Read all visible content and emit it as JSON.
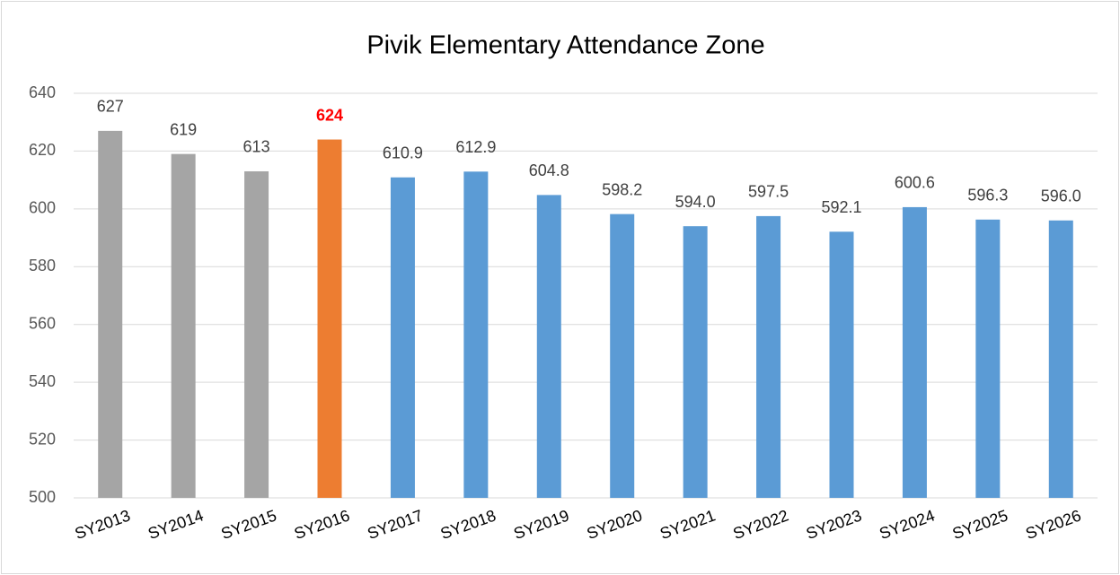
{
  "chart_data": {
    "type": "bar",
    "title": "Pivik Elementary Attendance Zone",
    "categories": [
      "SY2013",
      "SY2014",
      "SY2015",
      "SY2016",
      "SY2017",
      "SY2018",
      "SY2019",
      "SY2020",
      "SY2021",
      "SY2022",
      "SY2023",
      "SY2024",
      "SY2025",
      "SY2026"
    ],
    "values": [
      627,
      619,
      613,
      624,
      610.9,
      612.9,
      604.8,
      598.2,
      594.0,
      597.5,
      592.1,
      600.6,
      596.3,
      596.0
    ],
    "value_labels": [
      "627",
      "619",
      "613",
      "624",
      "610.9",
      "612.9",
      "604.8",
      "598.2",
      "594.0",
      "597.5",
      "592.1",
      "600.6",
      "596.3",
      "596.0"
    ],
    "colors": [
      "#a5a5a5",
      "#a5a5a5",
      "#a5a5a5",
      "#ed7d31",
      "#5b9bd5",
      "#5b9bd5",
      "#5b9bd5",
      "#5b9bd5",
      "#5b9bd5",
      "#5b9bd5",
      "#5b9bd5",
      "#5b9bd5",
      "#5b9bd5",
      "#5b9bd5"
    ],
    "value_label_colors": [
      "#404040",
      "#404040",
      "#404040",
      "#ff0000",
      "#404040",
      "#404040",
      "#404040",
      "#404040",
      "#404040",
      "#404040",
      "#404040",
      "#404040",
      "#404040",
      "#404040"
    ],
    "value_label_bold": [
      false,
      false,
      false,
      true,
      false,
      false,
      false,
      false,
      false,
      false,
      false,
      false,
      false,
      false
    ],
    "ylim": [
      500,
      640
    ],
    "yticks": [
      500,
      520,
      540,
      560,
      580,
      600,
      620,
      640
    ],
    "grid": true
  }
}
